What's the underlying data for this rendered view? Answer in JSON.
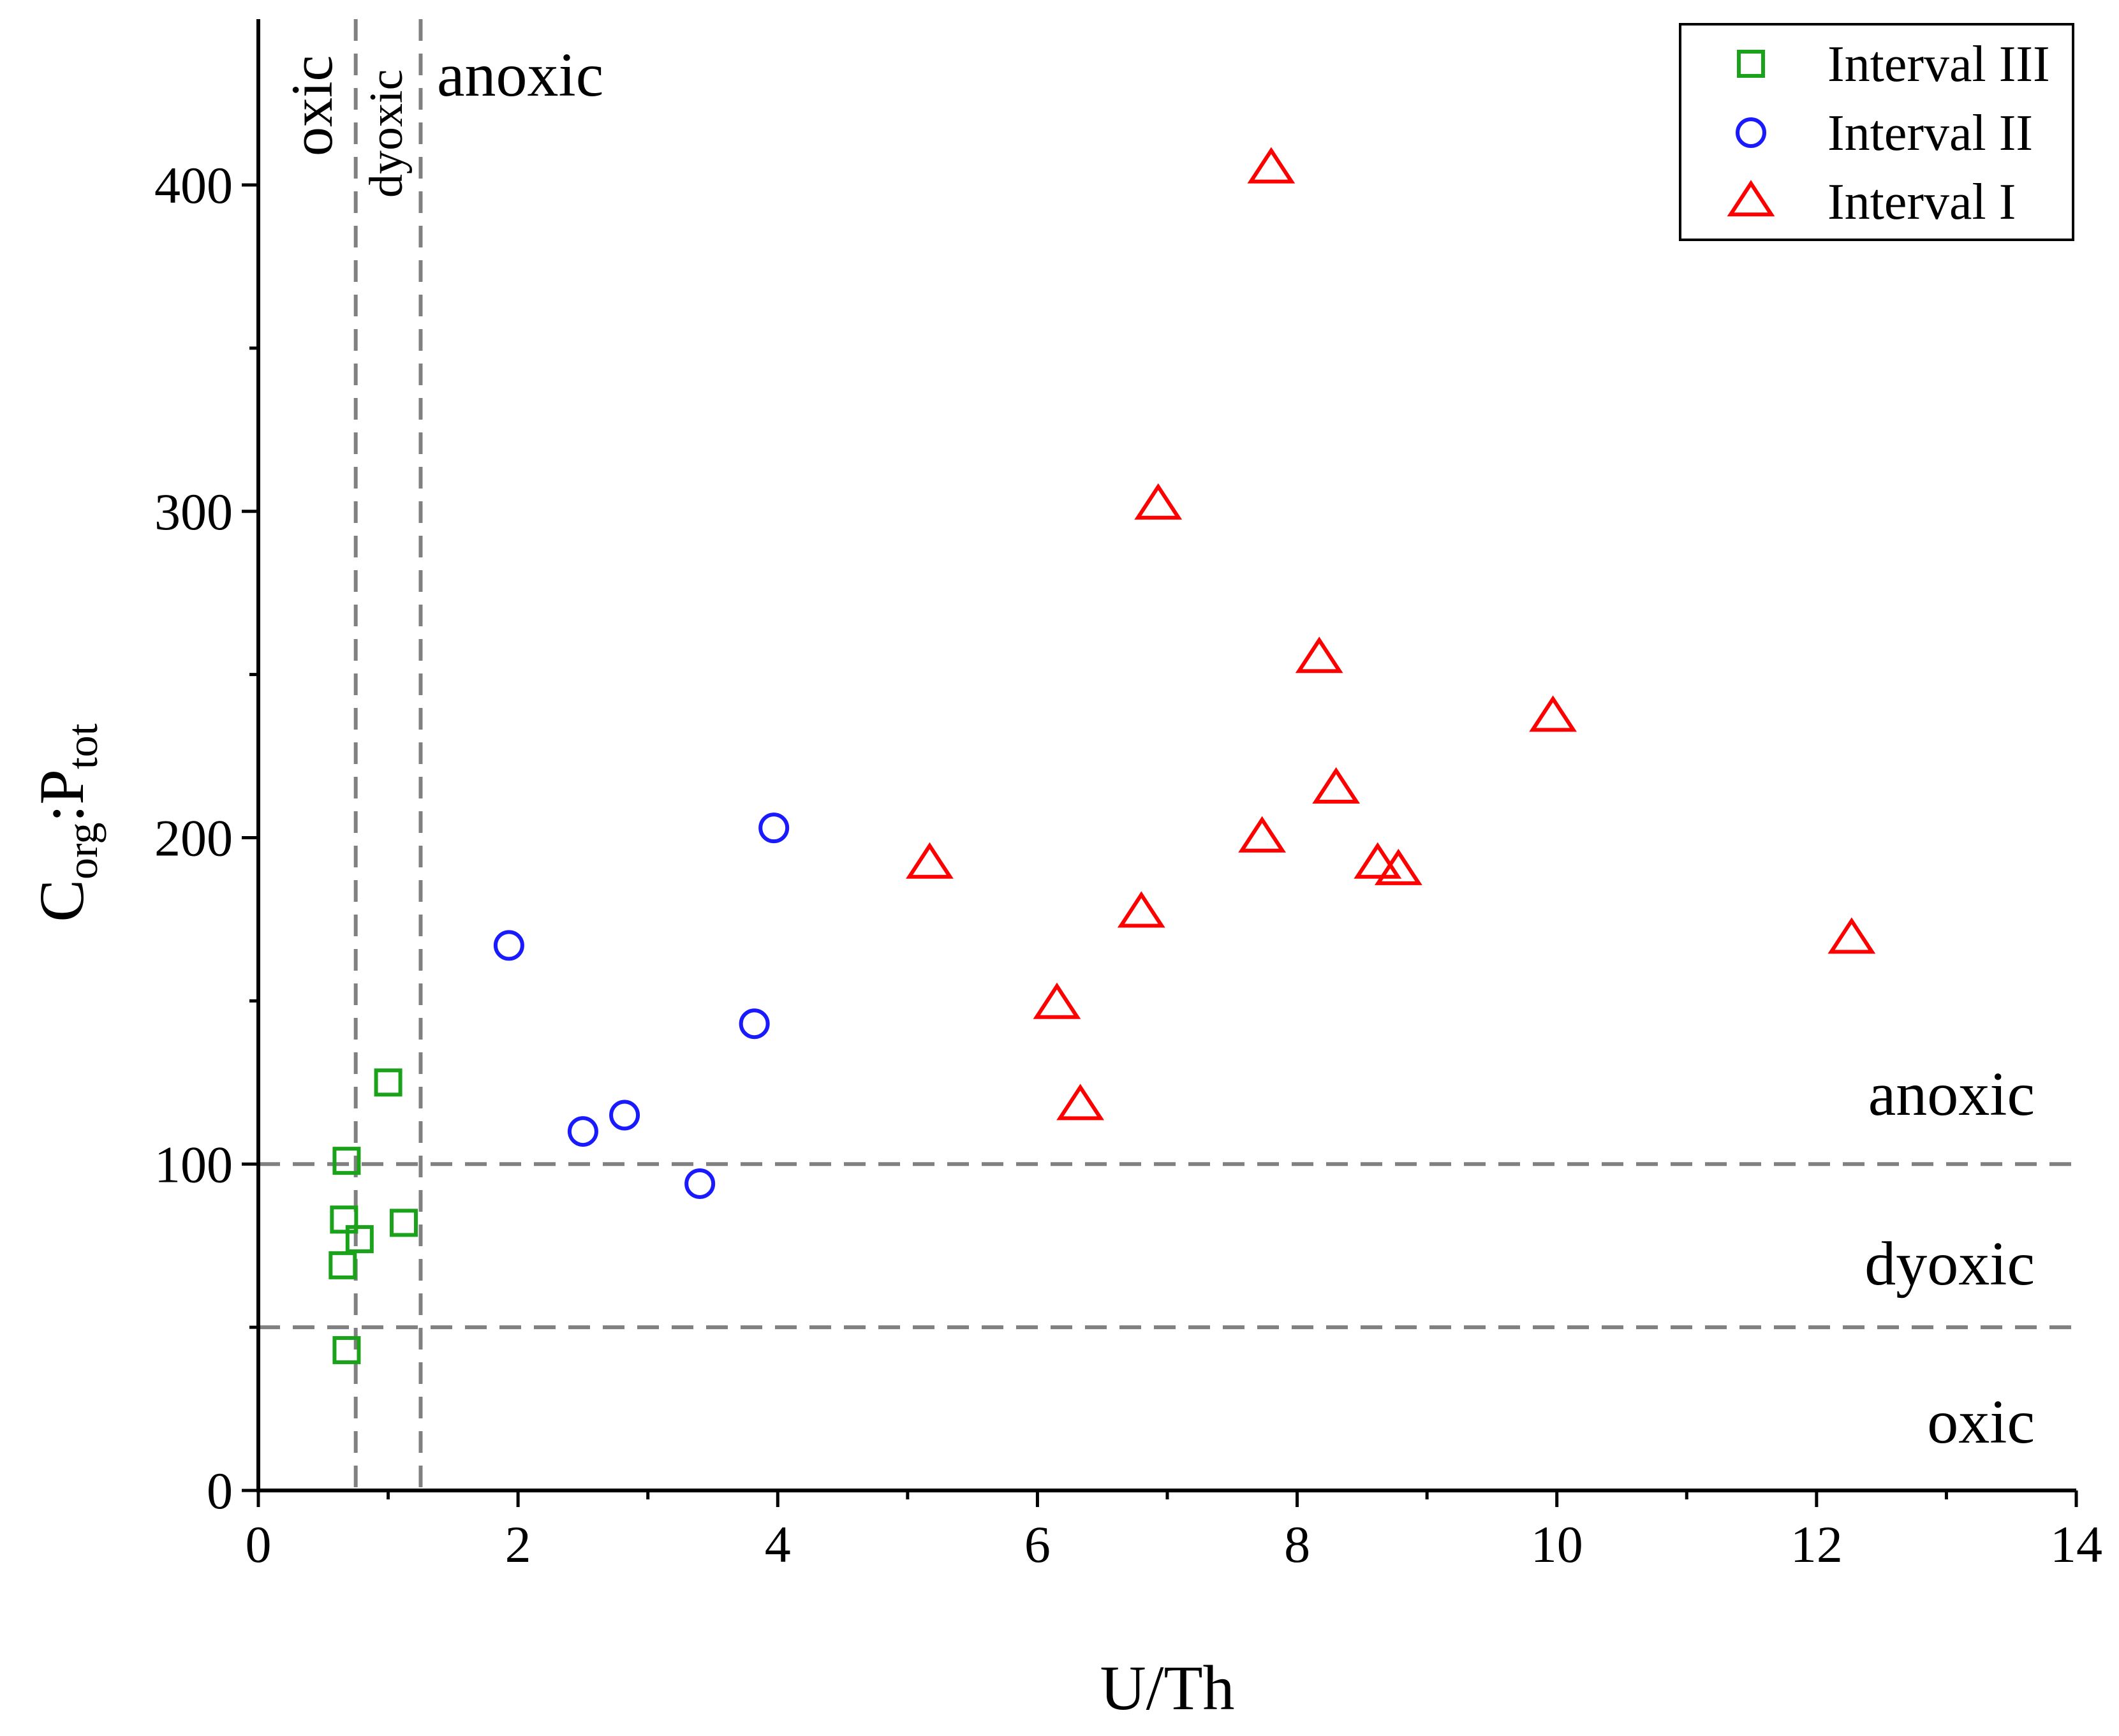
{
  "chart_data": {
    "type": "scatter",
    "title": "",
    "xlabel": "U/Th",
    "ylabel": {
      "main": "C",
      "sub1": "org",
      "sep": ":P",
      "sub2": "tot"
    },
    "xlim": [
      0,
      14
    ],
    "ylim": [
      0,
      450
    ],
    "xticks": [
      0,
      2,
      4,
      6,
      8,
      10,
      12,
      14
    ],
    "yticks": [
      0,
      100,
      200,
      300,
      400
    ],
    "grid": false,
    "legend_position": "top-right",
    "thresholds": {
      "vertical": [
        0.75,
        1.25
      ],
      "horizontal": [
        50,
        100
      ]
    },
    "region_labels": {
      "vertical": {
        "oxic": "oxic",
        "dyoxic": "dyoxic",
        "anoxic": "anoxic"
      },
      "horizontal": {
        "anoxic": "anoxic",
        "dyoxic": "dyoxic",
        "oxic": "oxic"
      }
    },
    "series": [
      {
        "name": "Interval III",
        "marker": "square",
        "color": "#1aa31a",
        "points": [
          [
            0.68,
            101
          ],
          [
            0.66,
            83
          ],
          [
            0.78,
            77
          ],
          [
            0.65,
            69
          ],
          [
            0.68,
            43
          ],
          [
            1.0,
            125
          ],
          [
            1.12,
            82
          ]
        ]
      },
      {
        "name": "Interval II",
        "marker": "circle",
        "color": "#1a1aff",
        "points": [
          [
            1.93,
            167
          ],
          [
            2.5,
            110
          ],
          [
            2.82,
            115
          ],
          [
            3.4,
            94
          ],
          [
            3.82,
            143
          ],
          [
            3.97,
            203
          ]
        ]
      },
      {
        "name": "Interval I",
        "marker": "triangle",
        "color": "#ff0000",
        "points": [
          [
            7.8,
            405
          ],
          [
            6.93,
            302
          ],
          [
            8.17,
            255
          ],
          [
            9.97,
            237
          ],
          [
            8.3,
            215
          ],
          [
            7.73,
            200
          ],
          [
            5.17,
            192
          ],
          [
            8.62,
            192
          ],
          [
            8.78,
            190
          ],
          [
            6.8,
            177
          ],
          [
            12.27,
            169
          ],
          [
            6.15,
            149
          ],
          [
            6.33,
            118
          ]
        ]
      }
    ]
  }
}
